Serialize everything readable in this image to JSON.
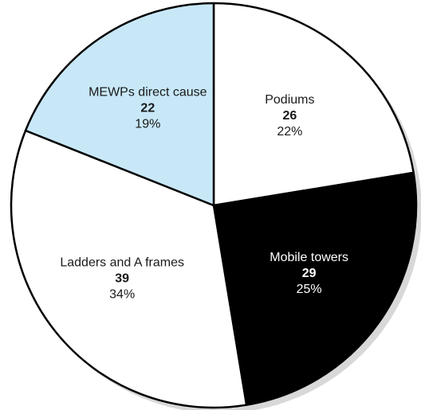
{
  "chart_data": {
    "type": "pie",
    "slices": [
      {
        "label": "Podiums",
        "value": 26,
        "percent": "22%",
        "color": "#ffffff",
        "text_color": "#1a1a1a"
      },
      {
        "label": "Mobile towers",
        "value": 29,
        "percent": "25%",
        "color": "#000000",
        "text_color": "#ffffff"
      },
      {
        "label": "Ladders and A frames",
        "value": 39,
        "percent": "34%",
        "color": "#ffffff",
        "text_color": "#1a1a1a"
      },
      {
        "label": "MEWPs direct cause",
        "value": 22,
        "percent": "19%",
        "color": "#c8e8f8",
        "text_color": "#1a1a1a"
      }
    ],
    "shadow_color": "#d8d8d8"
  }
}
